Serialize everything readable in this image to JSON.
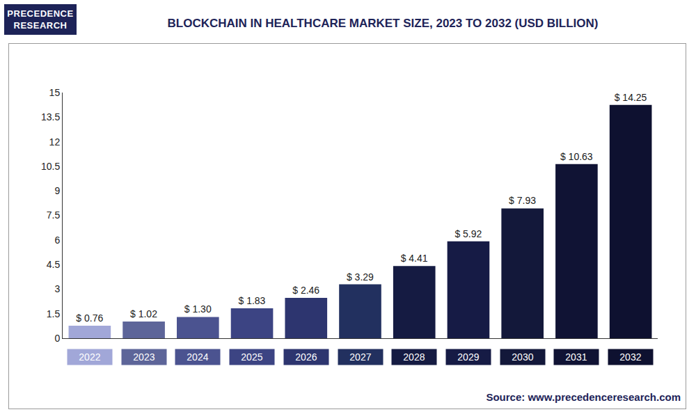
{
  "chart_data": {
    "type": "bar",
    "title": "BLOCKCHAIN IN HEALTHCARE MARKET SIZE, 2023 TO 2032 (USD BILLION)",
    "categories": [
      "2022",
      "2023",
      "2024",
      "2025",
      "2026",
      "2027",
      "2028",
      "2029",
      "2030",
      "2031",
      "2032"
    ],
    "values": [
      0.76,
      1.02,
      1.3,
      1.83,
      2.46,
      3.29,
      4.41,
      5.92,
      7.93,
      10.63,
      14.25
    ],
    "value_labels": [
      "$ 0.76",
      "$ 1.02",
      "$ 1.30",
      "$ 1.83",
      "$ 2.46",
      "$ 3.29",
      "$ 4.41",
      "$ 5.92",
      "$ 7.93",
      "$ 10.63",
      "$ 14.25"
    ],
    "colors": [
      "#a1a7d8",
      "#5d6599",
      "#4b5390",
      "#3c4483",
      "#2d356f",
      "#22305f",
      "#151b42",
      "#161b45",
      "#13183a",
      "#101334",
      "#0e1130"
    ],
    "ylim": [
      0,
      15
    ],
    "yticks": [
      0,
      1.5,
      3,
      4.5,
      6,
      7.5,
      9,
      10.5,
      12,
      13.5,
      15
    ],
    "grid": false,
    "data_labels": true
  },
  "logo": [
    "PRECEDENCE",
    "RESEARCH"
  ],
  "source": "Source: www.precedenceresearch.com"
}
